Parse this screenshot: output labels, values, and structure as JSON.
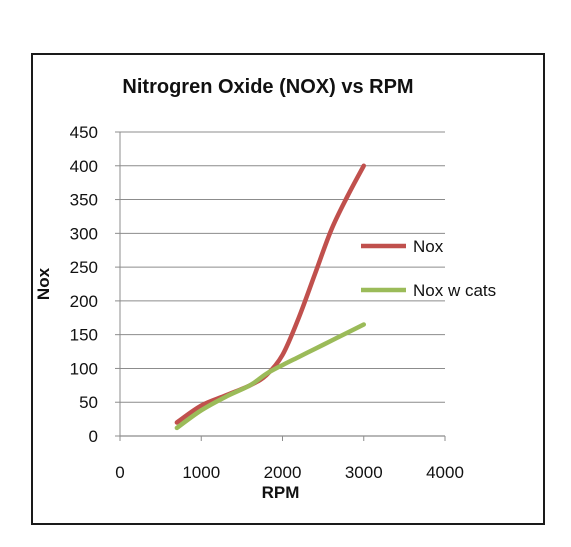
{
  "chart_data": {
    "type": "line",
    "title": "Nitrogren Oxide (NOX) vs RPM",
    "xlabel": "RPM",
    "ylabel": "Nox",
    "xlim": [
      0,
      4000
    ],
    "ylim": [
      0,
      450
    ],
    "xticks": [
      0,
      1000,
      2000,
      3000,
      4000
    ],
    "yticks": [
      0,
      50,
      100,
      150,
      200,
      250,
      300,
      350,
      400,
      450
    ],
    "grid": "horizontal",
    "legend_position": "right",
    "series": [
      {
        "name": "Nox",
        "color": "#c0504d",
        "x": [
          700,
          1000,
          1300,
          1600,
          1800,
          2000,
          2200,
          2400,
          2600,
          2800,
          3000
        ],
        "y": [
          20,
          45,
          60,
          75,
          90,
          120,
          175,
          240,
          305,
          355,
          400
        ]
      },
      {
        "name": "Nox w cats",
        "color": "#9bbb59",
        "x": [
          700,
          1000,
          1300,
          1600,
          1800,
          2000,
          2200,
          2400,
          2600,
          2800,
          3000
        ],
        "y": [
          12,
          38,
          58,
          75,
          92,
          105,
          117,
          129,
          141,
          153,
          165
        ]
      }
    ]
  }
}
